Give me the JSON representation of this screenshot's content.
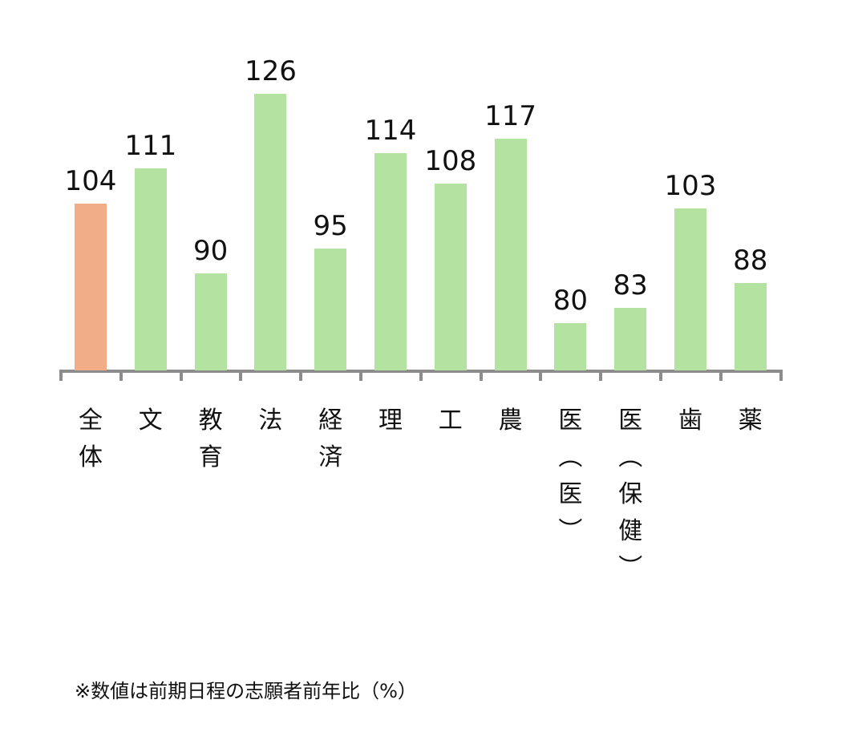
{
  "chart_data": {
    "type": "bar",
    "title": "",
    "xlabel": "",
    "ylabel": "",
    "categories": [
      "全体",
      "文",
      "教育",
      "法",
      "経済",
      "理",
      "工",
      "農",
      "医（医）",
      "医（保健）",
      "歯",
      "薬"
    ],
    "category_labels_vertical": [
      "全\n体",
      "文",
      "教\n育",
      "法",
      "経\n済",
      "理",
      "工",
      "農",
      "医\n︵\n医\n︶",
      "医\n︵\n保\n健\n︶",
      "歯",
      "薬"
    ],
    "values": [
      104,
      111,
      90,
      126,
      95,
      114,
      108,
      117,
      80,
      83,
      103,
      88
    ],
    "colors": [
      "#f0ad88",
      "#b4e3a1",
      "#b4e3a1",
      "#b4e3a1",
      "#b4e3a1",
      "#b4e3a1",
      "#b4e3a1",
      "#b4e3a1",
      "#b4e3a1",
      "#b4e3a1",
      "#b4e3a1",
      "#b4e3a1"
    ],
    "grid": false,
    "legend": "none",
    "note": "※数値は前期日程の志願者前年比（%）"
  }
}
